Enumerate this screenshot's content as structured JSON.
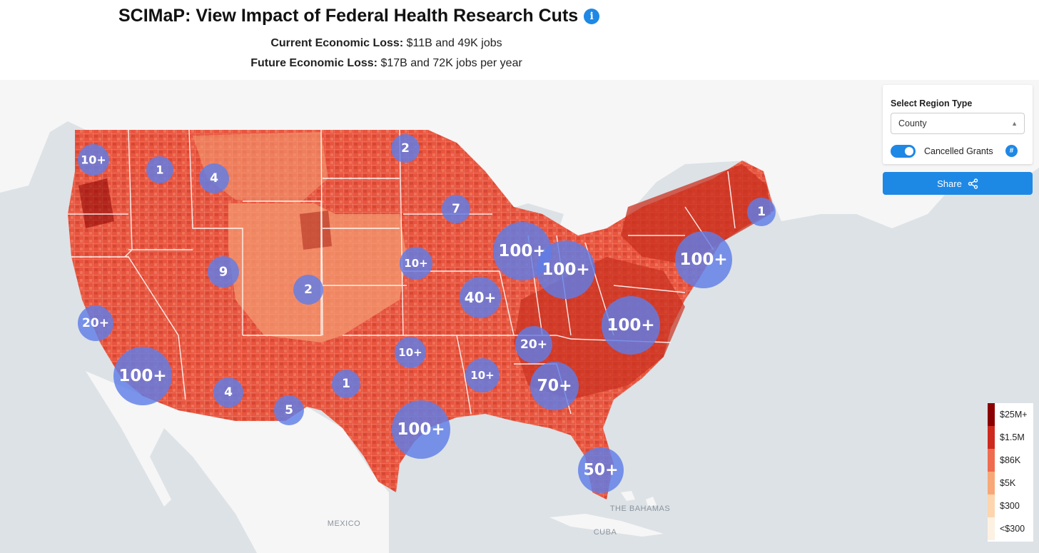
{
  "header": {
    "title": "SCIMaP: View Impact of Federal Health Research Cuts",
    "info_icon": "info-icon",
    "current_loss_label": "Current Economic Loss:",
    "current_loss_value": "$11B and 49K jobs",
    "future_loss_label": "Future Economic Loss:",
    "future_loss_value": "$17B and 72K jobs per year"
  },
  "controls": {
    "region_type_label": "Select Region Type",
    "region_type_value": "County",
    "cancelled_grants_label": "Cancelled Grants",
    "cancelled_grants_on": true,
    "hash_icon": "#",
    "share_label": "Share",
    "share_icon": "share-icon"
  },
  "legend": {
    "items": [
      {
        "label": "$25M+",
        "color": "#8b0000"
      },
      {
        "label": "$1.5M",
        "color": "#cc2a1f"
      },
      {
        "label": "$86K",
        "color": "#ef6b4f"
      },
      {
        "label": "$5K",
        "color": "#f8a878"
      },
      {
        "label": "$300",
        "color": "#fdd5ae"
      },
      {
        "label": "<$300",
        "color": "#fdf1e2"
      }
    ]
  },
  "place_labels": {
    "mexico": "MEXICO",
    "bahamas": "THE BAHAMAS",
    "cuba": "CUBA"
  },
  "clusters": [
    {
      "label": "10+"
    },
    {
      "label": "1"
    },
    {
      "label": "4"
    },
    {
      "label": "2"
    },
    {
      "label": "7"
    },
    {
      "label": "1"
    },
    {
      "label": "100+"
    },
    {
      "label": "100+"
    },
    {
      "label": "100+"
    },
    {
      "label": "9"
    },
    {
      "label": "10+"
    },
    {
      "label": "2"
    },
    {
      "label": "40+"
    },
    {
      "label": "20+"
    },
    {
      "label": "100+"
    },
    {
      "label": "100+"
    },
    {
      "label": "10+"
    },
    {
      "label": "20+"
    },
    {
      "label": "1"
    },
    {
      "label": "10+"
    },
    {
      "label": "70+"
    },
    {
      "label": "4"
    },
    {
      "label": "5"
    },
    {
      "label": "100+"
    },
    {
      "label": "50+"
    }
  ],
  "colors": {
    "accent": "#1e88e5",
    "bubble": "#5f7ee8",
    "land": "#f6f6f6",
    "water": "#dde2e6"
  }
}
